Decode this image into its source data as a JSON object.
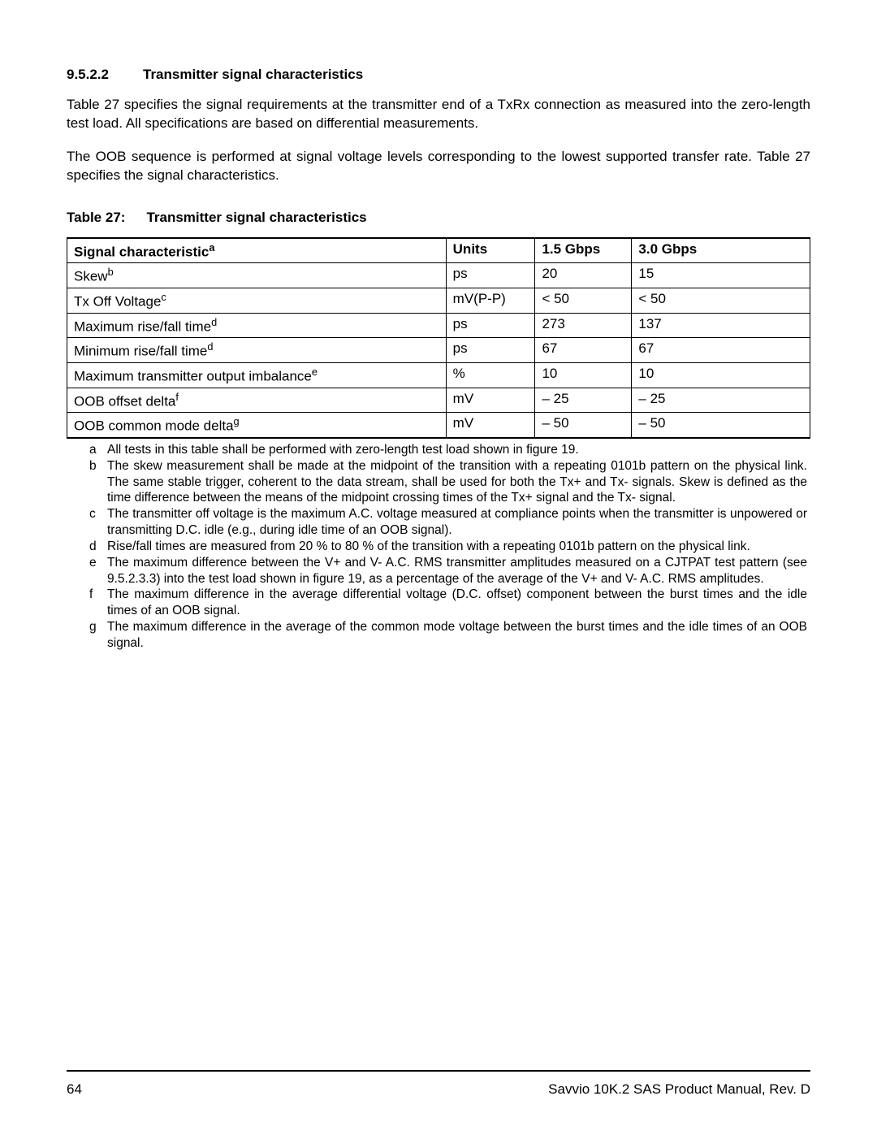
{
  "heading": {
    "number": "9.5.2.2",
    "title": "Transmitter signal characteristics"
  },
  "paragraphs": {
    "p1": "Table 27 specifies the signal requirements at the transmitter end of a TxRx connection as measured into the zero-length test load. All specifications are based on differential measurements.",
    "p2": "The OOB sequence is performed at signal voltage levels corresponding to the lowest supported transfer rate. Table 27 specifies the signal characteristics."
  },
  "table_caption": {
    "label": "Table 27:",
    "title": "Transmitter signal characteristics"
  },
  "table": {
    "headers": {
      "c1": "Signal characteristic",
      "c1_sup": "a",
      "c2": "Units",
      "c3": "1.5 Gbps",
      "c4": "3.0 Gbps"
    },
    "rows": [
      {
        "name": "Skew",
        "sup": "b",
        "units": "ps",
        "g15": "20",
        "g30": "15"
      },
      {
        "name": "Tx Off Voltage",
        "sup": "c",
        "units": "mV(P-P)",
        "g15": "< 50",
        "g30": "< 50"
      },
      {
        "name": "Maximum rise/fall time",
        "sup": "d",
        "units": "ps",
        "g15": " 273",
        "g30": "137"
      },
      {
        "name": "Minimum rise/fall time",
        "sup": "d",
        "units": "ps",
        "g15": "67",
        "g30": "67"
      },
      {
        "name": "Maximum transmitter output imbalance",
        "sup": "e",
        "units": "%",
        "g15": "10",
        "g30": "10"
      },
      {
        "name": "OOB offset delta",
        "sup": "f",
        "units": "mV",
        "g15": "– 25",
        "g30": "– 25"
      },
      {
        "name": "OOB common mode delta",
        "sup": "g",
        "units": "mV",
        "g15": "– 50",
        "g30": "– 50"
      }
    ]
  },
  "notes": [
    {
      "key": "a",
      "text": "All tests in this table shall be performed with zero-length test load shown in figure 19."
    },
    {
      "key": "b",
      "text": "The skew measurement shall be made at the midpoint of the transition with a repeating 0101b pattern on the physical link. The same stable trigger, coherent to the data stream, shall be used for both the Tx+ and Tx- signals. Skew is defined as the time difference between the means of the midpoint crossing times of the Tx+ signal and the Tx- signal."
    },
    {
      "key": "c",
      "text": "The transmitter off voltage is the maximum A.C. voltage measured at compliance points when the transmitter is unpowered or transmitting D.C. idle (e.g., during idle time of an OOB signal)."
    },
    {
      "key": "d",
      "text": "Rise/fall times are measured from 20 % to 80 % of the transition with a repeating 0101b pattern on the physical link."
    },
    {
      "key": "e",
      "text": "The maximum difference between the V+ and V- A.C. RMS transmitter amplitudes measured on a CJTPAT test pattern (see 9.5.2.3.3) into the test load shown in figure 19, as a percentage of the average of the V+ and V- A.C. RMS amplitudes."
    },
    {
      "key": "f",
      "text": "The maximum difference in the average differential voltage (D.C. offset) component between the burst times and the idle times of an OOB signal."
    },
    {
      "key": "g",
      "text": "The maximum difference in the average of the common mode voltage between the burst times and the idle times of an OOB signal."
    }
  ],
  "footer": {
    "page": "64",
    "doc": "Savvio 10K.2 SAS Product Manual, Rev. D"
  }
}
